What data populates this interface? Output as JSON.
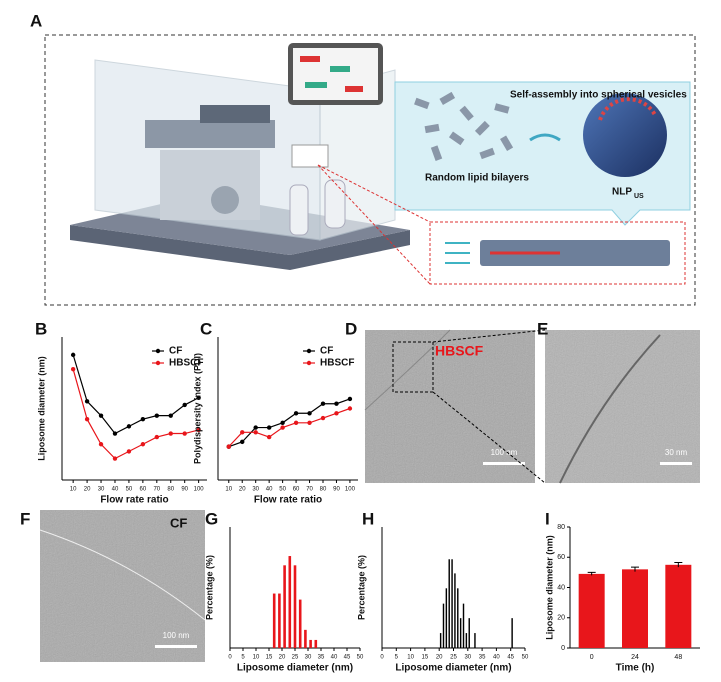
{
  "panel_labels": [
    "A",
    "B",
    "C",
    "D",
    "E",
    "F",
    "G",
    "H",
    "I"
  ],
  "illustration": {
    "caption_top": "Self-assembly into spherical vesicles",
    "caption_left": "Random lipid bilayers",
    "particle": "NLP",
    "particle_sub": "US"
  },
  "micrographs": [
    {
      "label": "HBSCF",
      "scale": "100 nm"
    },
    {
      "scale": "30 nm"
    },
    {
      "label": "CF",
      "scale": "100 nm"
    }
  ],
  "chart_data": [
    {
      "type": "line",
      "xlabel": "Flow rate ratio",
      "ylabel": "Liposome diameter (nm)",
      "x": [
        10,
        20,
        30,
        40,
        50,
        60,
        70,
        80,
        90,
        100
      ],
      "xlim": [
        2,
        106
      ],
      "xticks": [
        10,
        20,
        30,
        40,
        50,
        60,
        70,
        80,
        90,
        100
      ],
      "ylim": [
        40,
        80
      ],
      "legend": "upper right",
      "series": [
        {
          "name": "CF",
          "color": "#000000",
          "values": [
            75,
            62,
            58,
            53,
            55,
            57,
            58,
            58,
            61,
            63
          ]
        },
        {
          "name": "HBSCF",
          "color": "#e8161b",
          "values": [
            71,
            57,
            50,
            46,
            48,
            50,
            52,
            53,
            53,
            54
          ]
        }
      ]
    },
    {
      "type": "line",
      "xlabel": "Flow rate ratio",
      "ylabel": "Polydispersity index (PDI)",
      "x": [
        10,
        20,
        30,
        40,
        50,
        60,
        70,
        80,
        90,
        100
      ],
      "xlim": [
        2,
        106
      ],
      "xticks": [
        10,
        20,
        30,
        40,
        50,
        60,
        70,
        80,
        90,
        100
      ],
      "ylim": [
        0.05,
        0.35
      ],
      "legend": "upper right",
      "series": [
        {
          "name": "CF",
          "color": "#000000",
          "values": [
            0.12,
            0.13,
            0.16,
            0.16,
            0.17,
            0.19,
            0.19,
            0.21,
            0.21,
            0.22
          ]
        },
        {
          "name": "HBSCF",
          "color": "#e8161b",
          "values": [
            0.12,
            0.15,
            0.15,
            0.14,
            0.16,
            0.17,
            0.17,
            0.18,
            0.19,
            0.2
          ]
        }
      ]
    },
    {
      "type": "histogram",
      "xlabel": "Liposome diameter (nm)",
      "ylabel": "Percentage (%)",
      "color": "#e8161b",
      "bins": [
        16,
        18,
        20,
        22,
        24,
        26,
        28,
        30,
        32,
        34
      ],
      "counts": [
        13.5,
        13.5,
        20.5,
        22.8,
        20.5,
        12,
        4.5,
        2,
        2
      ],
      "xlim": [
        0,
        50
      ],
      "xticks": [
        0,
        5,
        10,
        15,
        20,
        25,
        30,
        35,
        40,
        45,
        50
      ],
      "ylim": [
        0,
        30
      ]
    },
    {
      "type": "histogram",
      "xlabel": "Liposome diameter (nm)",
      "ylabel": "Percentage (%)",
      "color": "#000000",
      "bins": [
        20,
        21,
        22,
        23,
        24,
        25,
        26,
        27,
        28,
        29,
        30,
        31,
        32,
        33,
        34,
        35,
        36,
        37,
        38,
        39,
        40,
        41,
        42,
        43,
        44,
        45,
        46,
        47
      ],
      "counts": [
        3.7,
        11,
        14.8,
        22,
        22,
        18.5,
        14.8,
        7.4,
        11,
        3.7,
        7.4,
        0,
        3.7,
        0,
        0,
        0,
        0,
        0,
        0,
        0,
        0,
        0,
        0,
        0,
        0,
        7.4,
        0
      ],
      "xlim": [
        0,
        50
      ],
      "xticks": [
        0,
        5,
        10,
        15,
        20,
        25,
        30,
        35,
        40,
        45,
        50
      ],
      "ylim": [
        0,
        30
      ]
    },
    {
      "type": "bar",
      "xlabel": "Time (h)",
      "ylabel": "Liposome diameter (nm)",
      "color": "#e8161b",
      "categories": [
        "0",
        "24",
        "48"
      ],
      "values": [
        49,
        52,
        55
      ],
      "errors": [
        1,
        1.5,
        1.5
      ],
      "ylim": [
        0,
        80
      ],
      "yticks": [
        0,
        20,
        40,
        60,
        80
      ]
    }
  ]
}
